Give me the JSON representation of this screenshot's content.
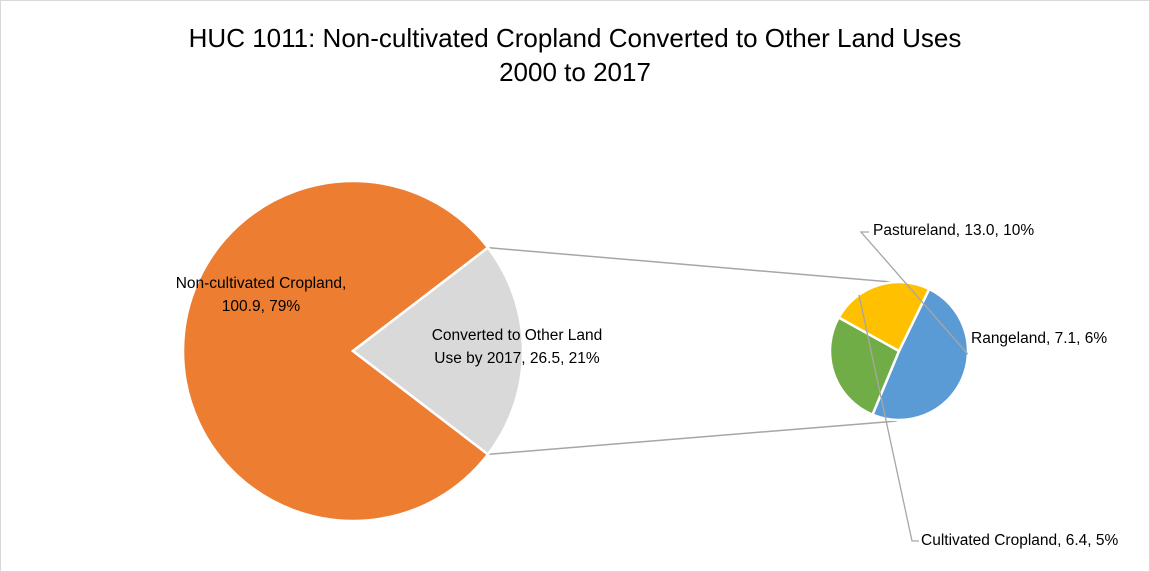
{
  "chart_data": {
    "type": "pie",
    "subtype": "pie-of-pie",
    "title": "HUC 1011: Non-cultivated Cropland Converted to Other Land Uses",
    "subtitle": "2000 to 2017",
    "primary": [
      {
        "label_line1": "Non-cultivated Cropland,",
        "label_line2": "100.9, 79%",
        "value": 100.9,
        "percent": 79,
        "color": "#ED7D31"
      },
      {
        "label_line1": "Converted to Other Land",
        "label_line2": "Use by 2017, 26.5, 21%",
        "value": 26.5,
        "percent": 21,
        "color": "#D9D9D9"
      }
    ],
    "secondary": [
      {
        "label": "Pastureland, 13.0, 10%",
        "value": 13.0,
        "percent": 10,
        "color": "#5B9BD5"
      },
      {
        "label": "Rangeland, 7.1, 6%",
        "value": 7.1,
        "percent": 6,
        "color": "#70AD47"
      },
      {
        "label": "Cultivated Cropland, 6.4, 5%",
        "value": 6.4,
        "percent": 5,
        "color": "#FFC000"
      }
    ]
  }
}
